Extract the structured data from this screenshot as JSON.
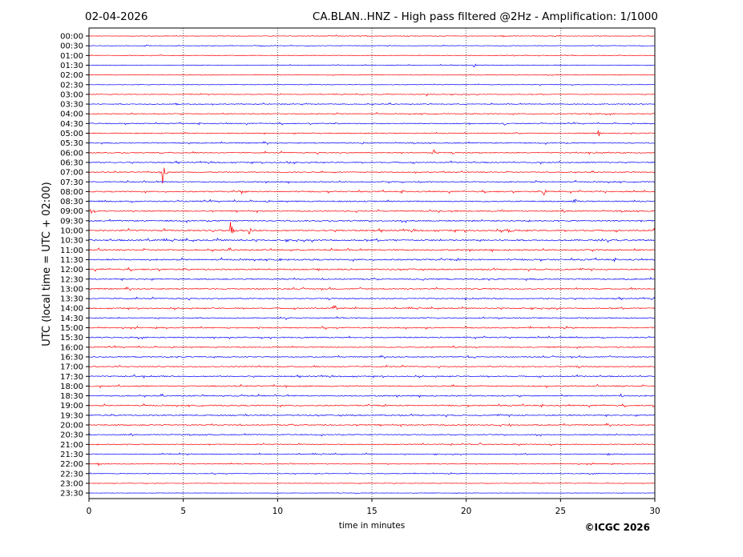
{
  "header": {
    "date": "02-04-2026",
    "title": "CA.BLAN..HNZ - High pass filtered @2Hz - Amplification: 1/1000"
  },
  "footer": {
    "copyright": "©ICGC 2026"
  },
  "colors": {
    "trace_a": "#ff0000",
    "trace_b": "#0000ff",
    "grid": "#000000"
  },
  "chart_data": {
    "type": "line",
    "title": "CA.BLAN..HNZ - High pass filtered @2Hz - Amplification: 1/1000",
    "xlabel": "time in minutes",
    "ylabel": "UTC (local time = UTC + 02:00)",
    "xlim": [
      0,
      30
    ],
    "x_ticks": [
      0,
      5,
      10,
      15,
      20,
      25,
      30
    ],
    "x_grid": [
      5,
      10,
      15,
      20,
      25
    ],
    "row_labels": [
      "00:00",
      "00:30",
      "01:00",
      "01:30",
      "02:00",
      "02:30",
      "03:00",
      "03:30",
      "04:00",
      "04:30",
      "05:00",
      "05:30",
      "06:00",
      "06:30",
      "07:00",
      "07:30",
      "08:00",
      "08:30",
      "09:00",
      "09:30",
      "10:00",
      "10:30",
      "11:00",
      "11:30",
      "12:00",
      "12:30",
      "13:00",
      "13:30",
      "14:00",
      "14:30",
      "15:00",
      "15:30",
      "16:00",
      "16:30",
      "17:00",
      "17:30",
      "18:00",
      "18:30",
      "19:00",
      "19:30",
      "20:00",
      "20:30",
      "21:00",
      "21:30",
      "22:00",
      "22:30",
      "23:00",
      "23:30"
    ],
    "row_colors": [
      "red",
      "blue"
    ],
    "noise_level": [
      0.3,
      0.3,
      0.3,
      0.3,
      0.3,
      0.3,
      0.35,
      0.45,
      0.5,
      0.5,
      0.55,
      0.55,
      0.6,
      0.6,
      0.5,
      0.6,
      0.65,
      0.65,
      0.65,
      0.7,
      0.8,
      0.8,
      0.75,
      0.75,
      0.75,
      0.7,
      0.65,
      0.6,
      0.6,
      0.6,
      0.6,
      0.6,
      0.55,
      0.55,
      0.6,
      0.6,
      0.65,
      0.65,
      0.65,
      0.7,
      0.6,
      0.55,
      0.5,
      0.45,
      0.45,
      0.35,
      0.25,
      0.2
    ],
    "events": [
      {
        "row": 0,
        "x": 13.1,
        "amp": 2
      },
      {
        "row": 0,
        "x": 21.9,
        "amp": 2
      },
      {
        "row": 0,
        "x": 24.7,
        "amp": 1.5
      },
      {
        "row": 1,
        "x": 9.2,
        "amp": 2
      },
      {
        "row": 1,
        "x": 3.0,
        "amp": 1.5
      },
      {
        "row": 2,
        "x": 8.6,
        "amp": 1.5
      },
      {
        "row": 3,
        "x": 20.4,
        "amp": 3
      },
      {
        "row": 6,
        "x": 17.9,
        "amp": 2
      },
      {
        "row": 7,
        "x": 4.6,
        "amp": 3
      },
      {
        "row": 7,
        "x": 11.3,
        "amp": 2
      },
      {
        "row": 7,
        "x": 29.3,
        "amp": 1.5
      },
      {
        "row": 8,
        "x": 26.5,
        "amp": 2.5
      },
      {
        "row": 9,
        "x": 0.1,
        "amp": 2.5
      },
      {
        "row": 9,
        "x": 22.0,
        "amp": 3
      },
      {
        "row": 10,
        "x": 27.0,
        "amp": 7
      },
      {
        "row": 10,
        "x": 5.2,
        "amp": 2
      },
      {
        "row": 11,
        "x": 14.5,
        "amp": 2.5
      },
      {
        "row": 11,
        "x": 5.3,
        "amp": 2
      },
      {
        "row": 12,
        "x": 18.2,
        "amp": 8
      },
      {
        "row": 12,
        "x": 3.7,
        "amp": 2
      },
      {
        "row": 13,
        "x": 10.5,
        "amp": 3
      },
      {
        "row": 14,
        "x": 3.9,
        "amp": 17
      },
      {
        "row": 14,
        "x": 18.8,
        "amp": 2
      },
      {
        "row": 15,
        "x": 17.5,
        "amp": 3
      },
      {
        "row": 15,
        "x": 16.6,
        "amp": 2
      },
      {
        "row": 16,
        "x": 24.1,
        "amp": 9
      },
      {
        "row": 16,
        "x": 8.0,
        "amp": 2
      },
      {
        "row": 17,
        "x": 25.7,
        "amp": 5
      },
      {
        "row": 17,
        "x": 22.9,
        "amp": 2
      },
      {
        "row": 18,
        "x": 0.1,
        "amp": 4
      },
      {
        "row": 20,
        "x": 7.5,
        "amp": 12
      },
      {
        "row": 20,
        "x": 22.2,
        "amp": 11
      },
      {
        "row": 20,
        "x": 8.5,
        "amp": 6
      },
      {
        "row": 20,
        "x": 6.5,
        "amp": 3
      },
      {
        "row": 21,
        "x": 3.1,
        "amp": 3
      },
      {
        "row": 21,
        "x": 28.0,
        "amp": 2
      },
      {
        "row": 23,
        "x": 10.1,
        "amp": 2.5
      },
      {
        "row": 25,
        "x": 17.7,
        "amp": 2
      },
      {
        "row": 28,
        "x": 13.0,
        "amp": 5
      },
      {
        "row": 33,
        "x": 0.0,
        "amp": 3
      },
      {
        "row": 33,
        "x": 20.1,
        "amp": 2
      },
      {
        "row": 35,
        "x": 2.4,
        "amp": 2
      },
      {
        "row": 37,
        "x": 8.1,
        "amp": 2
      },
      {
        "row": 37,
        "x": 28.2,
        "amp": 2
      },
      {
        "row": 39,
        "x": 8.3,
        "amp": 2.5
      },
      {
        "row": 39,
        "x": 11.1,
        "amp": 2
      },
      {
        "row": 40,
        "x": 12.4,
        "amp": 2.5
      },
      {
        "row": 40,
        "x": 22.3,
        "amp": 2.5
      },
      {
        "row": 41,
        "x": 0.0,
        "amp": 3
      },
      {
        "row": 42,
        "x": 19.2,
        "amp": 2.5
      },
      {
        "row": 42,
        "x": 20.7,
        "amp": 2.5
      },
      {
        "row": 43,
        "x": 27.5,
        "amp": 5
      },
      {
        "row": 44,
        "x": 0.5,
        "amp": 2.5
      },
      {
        "row": 44,
        "x": 10.7,
        "amp": 1.5
      },
      {
        "row": 45,
        "x": 12.6,
        "amp": 2
      },
      {
        "row": 47,
        "x": 14.1,
        "amp": 1.5
      }
    ]
  }
}
